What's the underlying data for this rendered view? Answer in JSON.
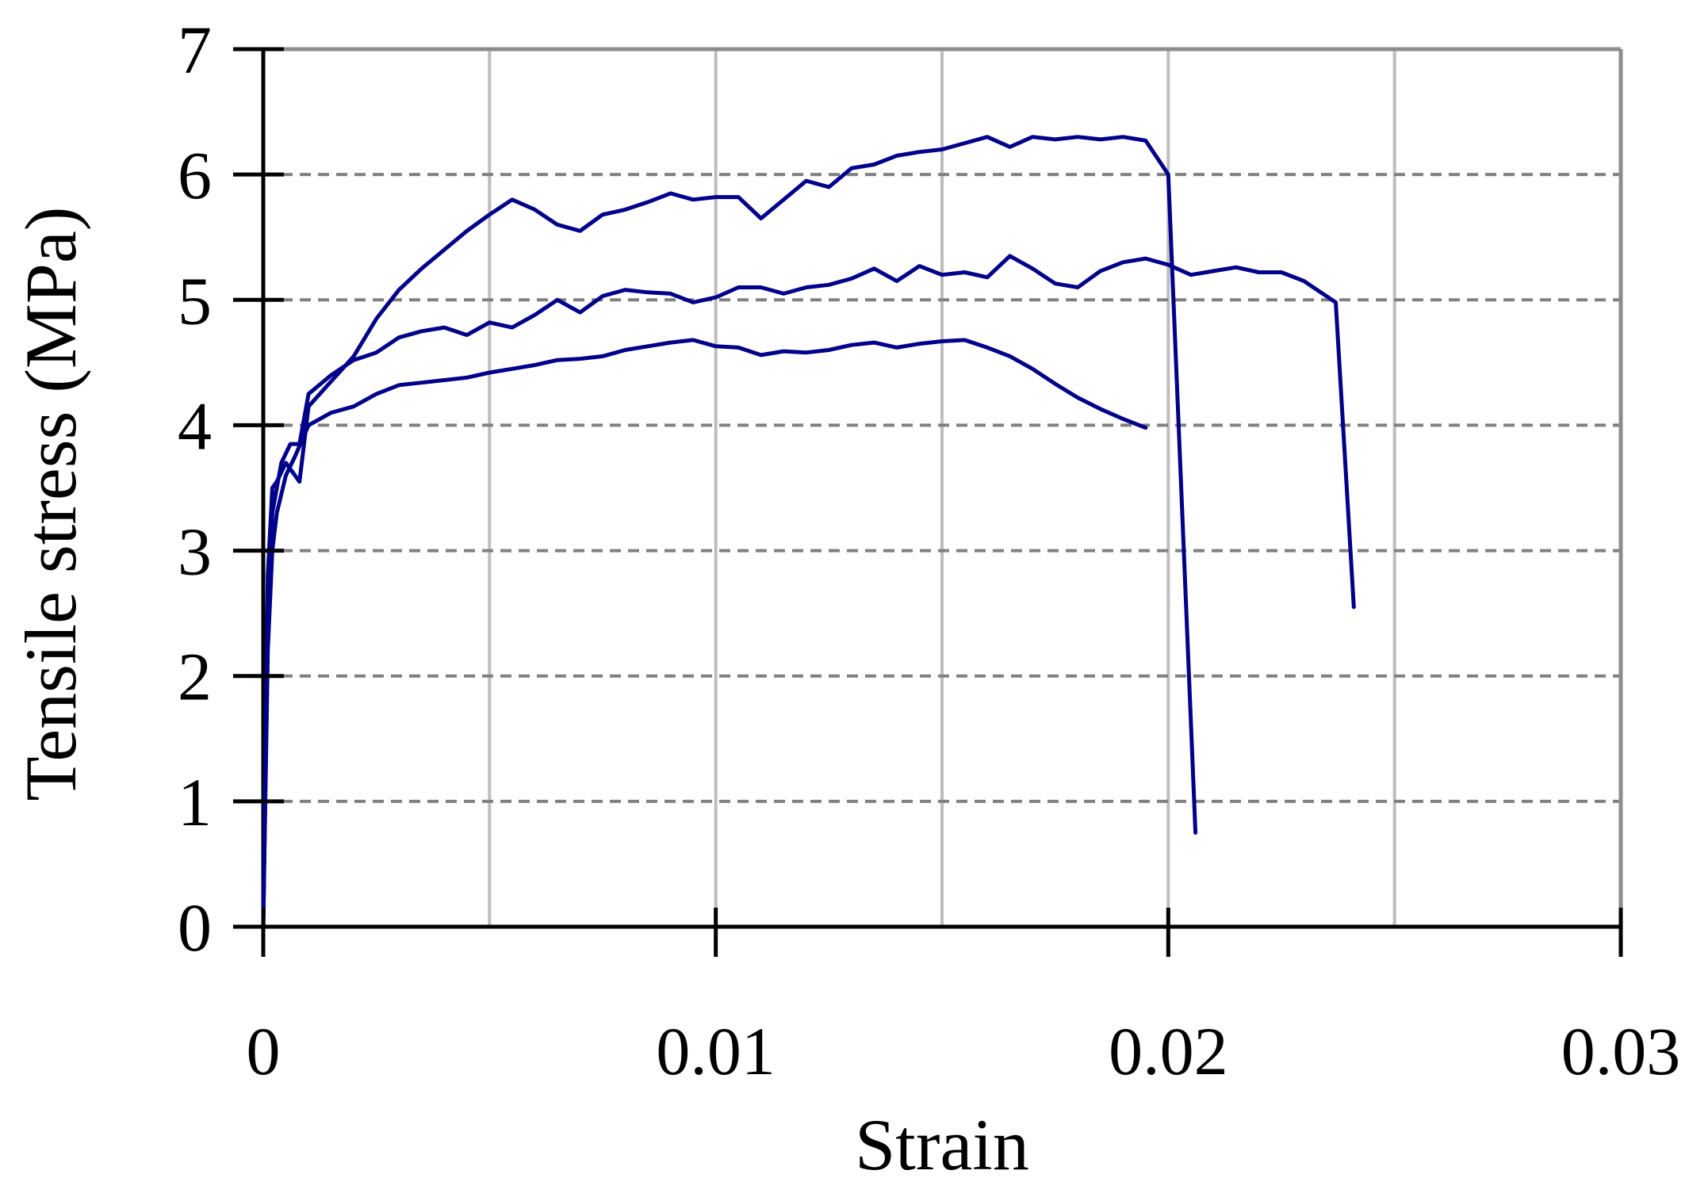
{
  "chart_data": {
    "type": "line",
    "title": "",
    "xlabel": "Strain",
    "ylabel": "Tensile stress (MPa)",
    "xlim": [
      0,
      0.03
    ],
    "ylim": [
      0,
      7
    ],
    "x_ticks": [
      0,
      0.01,
      0.02,
      0.03
    ],
    "x_tick_labels": [
      "0",
      "0.01",
      "0.02",
      "0.03"
    ],
    "y_ticks": [
      0,
      1,
      2,
      3,
      4,
      5,
      6,
      7
    ],
    "y_tick_labels": [
      "0",
      "1",
      "2",
      "3",
      "4",
      "5",
      "6",
      "7"
    ],
    "grid": true,
    "legend": "none",
    "line_color": "#00008B",
    "series": [
      {
        "points": [
          [
            0,
            0
          ],
          [
            0.0001,
            2.2
          ],
          [
            0.0002,
            3.0
          ],
          [
            0.0003,
            3.3
          ],
          [
            0.0005,
            3.6
          ],
          [
            0.0007,
            3.75
          ],
          [
            0.001,
            4.0
          ],
          [
            0.0015,
            4.1
          ],
          [
            0.002,
            4.15
          ],
          [
            0.0025,
            4.25
          ],
          [
            0.003,
            4.32
          ],
          [
            0.0035,
            4.34
          ],
          [
            0.004,
            4.36
          ],
          [
            0.0045,
            4.38
          ],
          [
            0.005,
            4.42
          ],
          [
            0.0055,
            4.45
          ],
          [
            0.006,
            4.48
          ],
          [
            0.0065,
            4.52
          ],
          [
            0.007,
            4.53
          ],
          [
            0.0075,
            4.55
          ],
          [
            0.008,
            4.6
          ],
          [
            0.0085,
            4.63
          ],
          [
            0.009,
            4.66
          ],
          [
            0.0095,
            4.68
          ],
          [
            0.01,
            4.63
          ],
          [
            0.0105,
            4.62
          ],
          [
            0.011,
            4.56
          ],
          [
            0.0115,
            4.59
          ],
          [
            0.012,
            4.58
          ],
          [
            0.0125,
            4.6
          ],
          [
            0.013,
            4.64
          ],
          [
            0.0135,
            4.66
          ],
          [
            0.014,
            4.62
          ],
          [
            0.0145,
            4.65
          ],
          [
            0.015,
            4.67
          ],
          [
            0.0155,
            4.68
          ],
          [
            0.016,
            4.62
          ],
          [
            0.0165,
            4.55
          ],
          [
            0.017,
            4.45
          ],
          [
            0.0175,
            4.33
          ],
          [
            0.018,
            4.22
          ],
          [
            0.0185,
            4.13
          ],
          [
            0.019,
            4.05
          ],
          [
            0.0195,
            3.98
          ]
        ]
      },
      {
        "points": [
          [
            0,
            0
          ],
          [
            0.0001,
            2.5
          ],
          [
            0.0002,
            3.3
          ],
          [
            0.0004,
            3.7
          ],
          [
            0.0006,
            3.85
          ],
          [
            0.0008,
            3.85
          ],
          [
            0.001,
            4.25
          ],
          [
            0.0015,
            4.4
          ],
          [
            0.002,
            4.52
          ],
          [
            0.0025,
            4.58
          ],
          [
            0.003,
            4.7
          ],
          [
            0.0035,
            4.75
          ],
          [
            0.004,
            4.78
          ],
          [
            0.0045,
            4.72
          ],
          [
            0.005,
            4.82
          ],
          [
            0.0055,
            4.78
          ],
          [
            0.006,
            4.88
          ],
          [
            0.0065,
            5.0
          ],
          [
            0.007,
            4.9
          ],
          [
            0.0075,
            5.03
          ],
          [
            0.008,
            5.08
          ],
          [
            0.0085,
            5.06
          ],
          [
            0.009,
            5.05
          ],
          [
            0.0095,
            4.98
          ],
          [
            0.01,
            5.02
          ],
          [
            0.0105,
            5.1
          ],
          [
            0.011,
            5.1
          ],
          [
            0.0115,
            5.05
          ],
          [
            0.012,
            5.1
          ],
          [
            0.0125,
            5.12
          ],
          [
            0.013,
            5.17
          ],
          [
            0.0135,
            5.25
          ],
          [
            0.014,
            5.15
          ],
          [
            0.0145,
            5.27
          ],
          [
            0.015,
            5.2
          ],
          [
            0.0155,
            5.22
          ],
          [
            0.016,
            5.18
          ],
          [
            0.0165,
            5.35
          ],
          [
            0.017,
            5.25
          ],
          [
            0.0175,
            5.13
          ],
          [
            0.018,
            5.1
          ],
          [
            0.0185,
            5.23
          ],
          [
            0.019,
            5.3
          ],
          [
            0.0195,
            5.33
          ],
          [
            0.02,
            5.28
          ],
          [
            0.0205,
            5.2
          ],
          [
            0.021,
            5.23
          ],
          [
            0.0215,
            5.26
          ],
          [
            0.022,
            5.22
          ],
          [
            0.0225,
            5.22
          ],
          [
            0.023,
            5.15
          ],
          [
            0.0237,
            4.98
          ],
          [
            0.0241,
            2.55
          ]
        ]
      },
      {
        "points": [
          [
            0,
            0
          ],
          [
            0.0001,
            2.8
          ],
          [
            0.0002,
            3.5
          ],
          [
            0.0003,
            3.55
          ],
          [
            0.0005,
            3.7
          ],
          [
            0.0008,
            3.55
          ],
          [
            0.001,
            4.15
          ],
          [
            0.0015,
            4.35
          ],
          [
            0.002,
            4.55
          ],
          [
            0.0025,
            4.85
          ],
          [
            0.003,
            5.08
          ],
          [
            0.0035,
            5.25
          ],
          [
            0.004,
            5.4
          ],
          [
            0.0045,
            5.55
          ],
          [
            0.005,
            5.68
          ],
          [
            0.0055,
            5.8
          ],
          [
            0.006,
            5.72
          ],
          [
            0.0065,
            5.6
          ],
          [
            0.007,
            5.55
          ],
          [
            0.0075,
            5.68
          ],
          [
            0.008,
            5.72
          ],
          [
            0.0085,
            5.78
          ],
          [
            0.009,
            5.85
          ],
          [
            0.0095,
            5.8
          ],
          [
            0.01,
            5.82
          ],
          [
            0.0105,
            5.82
          ],
          [
            0.011,
            5.65
          ],
          [
            0.0115,
            5.8
          ],
          [
            0.012,
            5.95
          ],
          [
            0.0125,
            5.9
          ],
          [
            0.013,
            6.05
          ],
          [
            0.0135,
            6.08
          ],
          [
            0.014,
            6.15
          ],
          [
            0.0145,
            6.18
          ],
          [
            0.015,
            6.2
          ],
          [
            0.0155,
            6.25
          ],
          [
            0.016,
            6.3
          ],
          [
            0.0165,
            6.22
          ],
          [
            0.017,
            6.3
          ],
          [
            0.0175,
            6.28
          ],
          [
            0.018,
            6.3
          ],
          [
            0.0185,
            6.28
          ],
          [
            0.019,
            6.3
          ],
          [
            0.0195,
            6.27
          ],
          [
            0.02,
            6.0
          ],
          [
            0.0206,
            0.75
          ]
        ]
      }
    ]
  }
}
